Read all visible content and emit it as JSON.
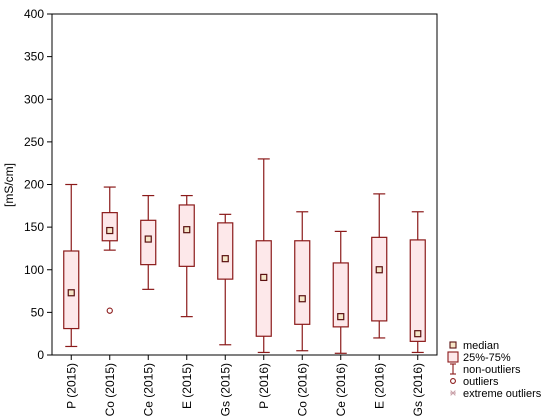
{
  "chart_data": {
    "type": "boxplot",
    "ylabel": "[mS/cm]",
    "ylim": [
      0,
      400
    ],
    "yticks": [
      0,
      50,
      100,
      150,
      200,
      250,
      300,
      350,
      400
    ],
    "grid": false,
    "legend_position": "bottom-right",
    "categories": [
      "P (2015)",
      "Co (2015)",
      "Ce (2015)",
      "E (2015)",
      "Gs (2015)",
      "P (2016)",
      "Co (2016)",
      "Ce (2016)",
      "E (2016)",
      "Gs (2016)"
    ],
    "boxes": [
      {
        "min": 10,
        "q1": 31,
        "median": 73,
        "q3": 122,
        "max": 200,
        "outliers": []
      },
      {
        "min": 123,
        "q1": 134,
        "median": 146,
        "q3": 167,
        "max": 197,
        "outliers": [
          52
        ]
      },
      {
        "min": 77,
        "q1": 106,
        "median": 136,
        "q3": 158,
        "max": 187,
        "outliers": []
      },
      {
        "min": 45,
        "q1": 104,
        "median": 147,
        "q3": 176,
        "max": 187,
        "outliers": []
      },
      {
        "min": 12,
        "q1": 89,
        "median": 113,
        "q3": 155,
        "max": 165,
        "outliers": []
      },
      {
        "min": 3,
        "q1": 22,
        "median": 91,
        "q3": 134,
        "max": 230,
        "outliers": []
      },
      {
        "min": 5,
        "q1": 36,
        "median": 66,
        "q3": 134,
        "max": 168,
        "outliers": []
      },
      {
        "min": 2,
        "q1": 33,
        "median": 45,
        "q3": 108,
        "max": 145,
        "outliers": []
      },
      {
        "min": 20,
        "q1": 40,
        "median": 100,
        "q3": 138,
        "max": 189,
        "outliers": []
      },
      {
        "min": 3,
        "q1": 16,
        "median": 25,
        "q3": 135,
        "max": 168,
        "outliers": []
      }
    ],
    "legend": [
      {
        "key": "median",
        "label": "median"
      },
      {
        "key": "box",
        "label": "25%-75%"
      },
      {
        "key": "whisker",
        "label": "non-outliers"
      },
      {
        "key": "outlier",
        "label": "outliers"
      },
      {
        "key": "extreme",
        "label": "extreme outliers"
      }
    ],
    "colors": {
      "box_stroke": "#8b1a1a",
      "box_fill": "#fde8ea",
      "median_stroke": "#5a1010",
      "median_fill": "#f5e6c8",
      "outlier_stroke": "#8b1a1a",
      "extreme_stroke": "#c9a0a8",
      "axis": "#000000"
    }
  }
}
